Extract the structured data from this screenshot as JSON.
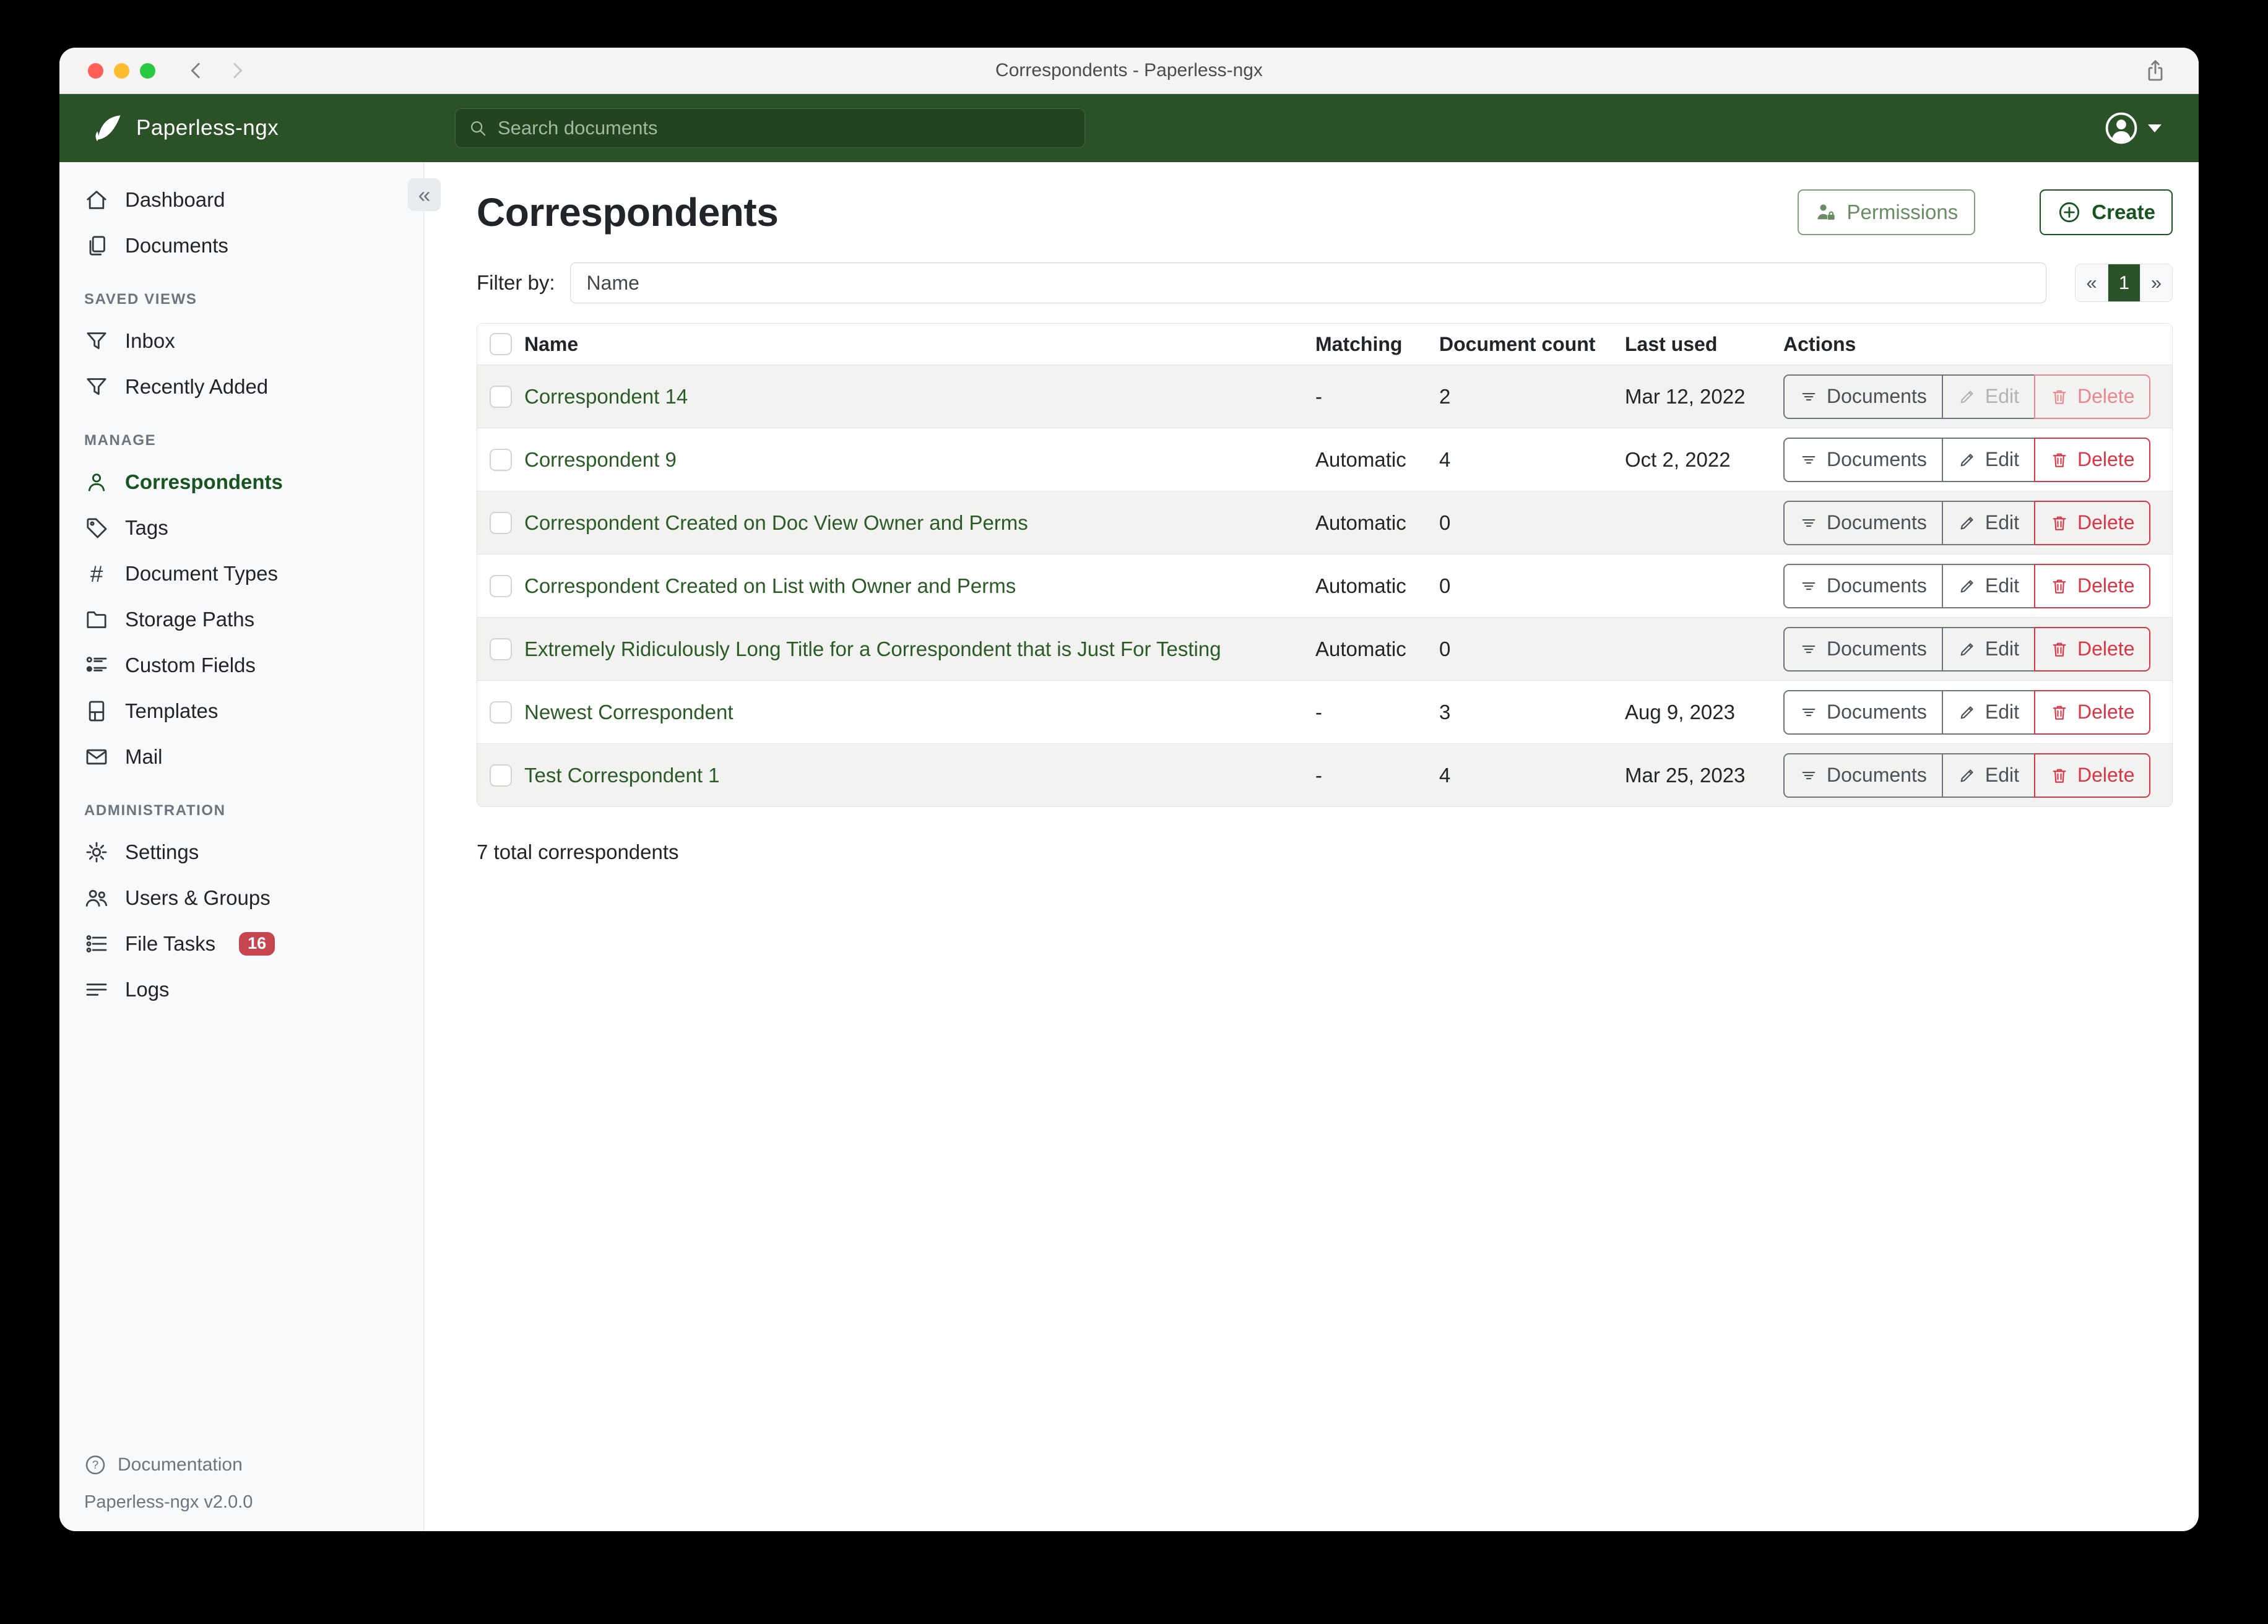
{
  "window": {
    "title": "Correspondents - Paperless-ngx"
  },
  "appbar": {
    "brand": "Paperless-ngx",
    "search": {
      "placeholder": "Search documents"
    }
  },
  "sidebar": {
    "sections": [
      {
        "heading": "",
        "items": [
          {
            "label": "Dashboard",
            "icon": "home"
          },
          {
            "label": "Documents",
            "icon": "documents"
          }
        ]
      },
      {
        "heading": "SAVED VIEWS",
        "items": [
          {
            "label": "Inbox",
            "icon": "funnel"
          },
          {
            "label": "Recently Added",
            "icon": "funnel"
          }
        ]
      },
      {
        "heading": "MANAGE",
        "items": [
          {
            "label": "Correspondents",
            "icon": "person",
            "active": true
          },
          {
            "label": "Tags",
            "icon": "tag"
          },
          {
            "label": "Document Types",
            "icon": "hash"
          },
          {
            "label": "Storage Paths",
            "icon": "folder"
          },
          {
            "label": "Custom Fields",
            "icon": "custom-fields"
          },
          {
            "label": "Templates",
            "icon": "template"
          },
          {
            "label": "Mail",
            "icon": "mail"
          }
        ]
      },
      {
        "heading": "ADMINISTRATION",
        "items": [
          {
            "label": "Settings",
            "icon": "gear"
          },
          {
            "label": "Users & Groups",
            "icon": "users"
          },
          {
            "label": "File Tasks",
            "icon": "tasks",
            "badge": "16"
          },
          {
            "label": "Logs",
            "icon": "logs"
          }
        ]
      }
    ],
    "footer": {
      "documentation": "Documentation",
      "version": "Paperless-ngx v2.0.0"
    }
  },
  "page": {
    "title": "Correspondents",
    "permissions_button": "Permissions",
    "create_button": "Create",
    "filter_label": "Filter by:",
    "filter_placeholder": "Name",
    "pagination": {
      "prev": "«",
      "current": "1",
      "next": "»"
    },
    "summary": "7 total correspondents"
  },
  "table": {
    "columns": {
      "name": "Name",
      "matching": "Matching",
      "count": "Document count",
      "last_used": "Last used",
      "actions": "Actions"
    },
    "action_labels": {
      "documents": "Documents",
      "edit": "Edit",
      "delete": "Delete"
    },
    "rows": [
      {
        "name": "Correspondent 14",
        "matching": "-",
        "count": "2",
        "last_used": "Mar 12, 2022",
        "edit_disabled": true,
        "delete_disabled": true
      },
      {
        "name": "Correspondent 9",
        "matching": "Automatic",
        "count": "4",
        "last_used": "Oct 2, 2022",
        "edit_disabled": false,
        "delete_disabled": false
      },
      {
        "name": "Correspondent Created on Doc View Owner and Perms",
        "matching": "Automatic",
        "count": "0",
        "last_used": "",
        "edit_disabled": false,
        "delete_disabled": false
      },
      {
        "name": "Correspondent Created on List with Owner and Perms",
        "matching": "Automatic",
        "count": "0",
        "last_used": "",
        "edit_disabled": false,
        "delete_disabled": false
      },
      {
        "name": "Extremely Ridiculously Long Title for a Correspondent that is Just For Testing",
        "matching": "Automatic",
        "count": "0",
        "last_used": "",
        "edit_disabled": false,
        "delete_disabled": false
      },
      {
        "name": "Newest Correspondent",
        "matching": "-",
        "count": "3",
        "last_used": "Aug 9, 2023",
        "edit_disabled": false,
        "delete_disabled": false
      },
      {
        "name": "Test Correspondent 1",
        "matching": "-",
        "count": "4",
        "last_used": "Mar 25, 2023",
        "edit_disabled": false,
        "delete_disabled": false
      }
    ]
  },
  "colors": {
    "brand_green": "#2a5226",
    "accent_green": "#17541f",
    "link_green": "#2a5b26",
    "danger_red": "#dc3545",
    "badge_red": "#c64650",
    "sidebar_bg": "#f8f9fa",
    "stripe_bg": "#f2f3f1"
  }
}
